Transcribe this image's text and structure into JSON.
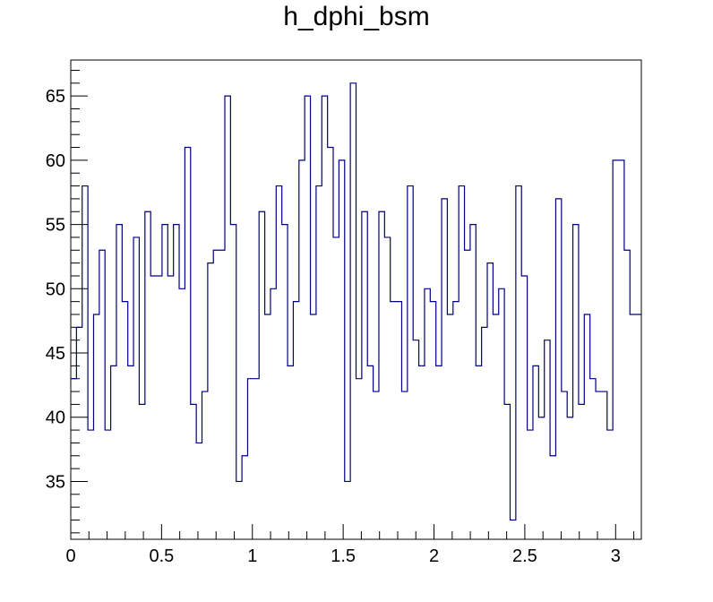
{
  "chart_data": {
    "type": "histogram-step",
    "title": "h_dphi_bsm",
    "xlabel": "",
    "ylabel": "",
    "xlim": [
      0,
      3.1416
    ],
    "ylim": [
      30.5,
      67.8
    ],
    "x_ticks": [
      0,
      0.5,
      1,
      1.5,
      2,
      2.5,
      3
    ],
    "x_tick_labels": [
      "0",
      "0.5",
      "1",
      "1.5",
      "2",
      "2.5",
      "3"
    ],
    "y_ticks": [
      35,
      40,
      45,
      50,
      55,
      60,
      65
    ],
    "y_tick_labels": [
      "35",
      "40",
      "45",
      "50",
      "55",
      "60",
      "65"
    ],
    "bins": 100,
    "bin_edges_range": [
      0,
      3.1416
    ],
    "line_color": "#000080",
    "grid": false,
    "legend": "none",
    "series": [
      {
        "values": [
          43,
          47,
          58,
          39,
          48,
          53,
          39,
          44,
          55,
          49,
          44,
          54,
          41,
          56,
          51,
          51,
          55,
          51,
          55,
          50,
          61,
          41,
          38,
          42,
          52,
          53,
          53,
          65,
          55,
          35,
          37,
          43,
          43,
          56,
          48,
          50,
          58,
          55,
          44,
          49,
          60,
          65,
          48,
          58,
          65,
          61,
          54,
          60,
          35,
          66,
          43,
          56,
          44,
          42,
          56,
          54,
          49,
          49,
          42,
          58,
          46,
          44,
          50,
          49,
          44,
          57,
          48,
          49,
          58,
          53,
          55,
          44,
          47,
          52,
          48,
          50,
          41,
          32,
          58,
          51,
          39,
          44,
          40,
          46,
          37,
          57,
          42,
          40,
          55,
          41,
          48,
          43,
          42,
          42,
          39,
          60,
          60,
          53,
          48,
          48
        ]
      }
    ]
  }
}
